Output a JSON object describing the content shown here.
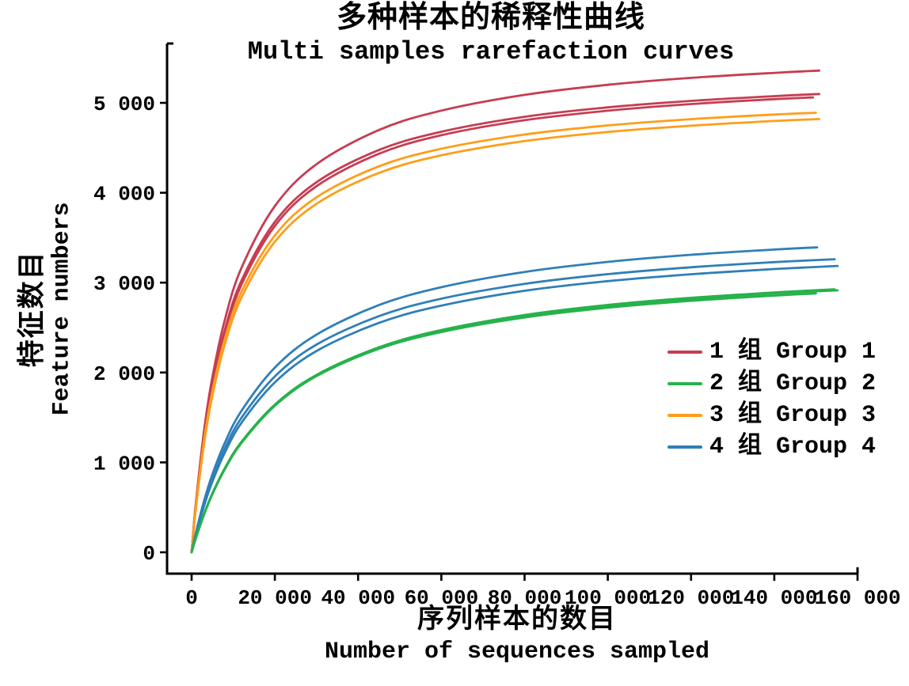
{
  "chart_data": {
    "type": "line",
    "title_zh": "多种样本的稀释性曲线",
    "title_en": "Multi samples rarefaction curves",
    "xlabel_zh": "序列样本的数目",
    "xlabel_en": "Number of sequences sampled",
    "ylabel_zh": "特征数目",
    "ylabel_en": "Feature numbers",
    "xlim": [
      0,
      160000
    ],
    "ylim": [
      0,
      5000
    ],
    "grid": false,
    "x_ticks": [
      {
        "value": 0,
        "label": "0"
      },
      {
        "value": 20000,
        "label": "20 000"
      },
      {
        "value": 40000,
        "label": "40 000"
      },
      {
        "value": 60000,
        "label": "60 000"
      },
      {
        "value": 80000,
        "label": "80 000"
      },
      {
        "value": 100000,
        "label": "100 000"
      },
      {
        "value": 120000,
        "label": "120 000"
      },
      {
        "value": 140000,
        "label": "140 000"
      },
      {
        "value": 160000,
        "label": "160 000"
      }
    ],
    "y_ticks": [
      {
        "value": 0,
        "label": "0"
      },
      {
        "value": 1000,
        "label": "1 000"
      },
      {
        "value": 2000,
        "label": "2 000"
      },
      {
        "value": 3000,
        "label": "3 000"
      },
      {
        "value": 4000,
        "label": "4 000"
      },
      {
        "value": 5000,
        "label": "5 000"
      }
    ],
    "legend": {
      "position": "right-middle",
      "entries": [
        {
          "label": "1 组 Group 1",
          "color": "#c63d52"
        },
        {
          "label": "2 组 Group 2",
          "color": "#27b24b"
        },
        {
          "label": "3 组 Group 3",
          "color": "#ff9d1a"
        },
        {
          "label": "4 组 Group 4",
          "color": "#2f7fb8"
        }
      ]
    },
    "series": [
      {
        "name": "Group 1 sample 1",
        "group": "Group 1",
        "color": "#c63d52",
        "points": [
          [
            0,
            0
          ],
          [
            500,
            282
          ],
          [
            1000,
            538
          ],
          [
            3000,
            1357
          ],
          [
            5000,
            1952
          ],
          [
            8000,
            2591
          ],
          [
            12000,
            3167
          ],
          [
            20000,
            3851
          ],
          [
            30000,
            4318
          ],
          [
            45000,
            4698
          ],
          [
            60000,
            4914
          ],
          [
            80000,
            5089
          ],
          [
            100000,
            5201
          ],
          [
            120000,
            5278
          ],
          [
            140000,
            5334
          ],
          [
            150800,
            5359
          ]
        ]
      },
      {
        "name": "Group 1 sample 2",
        "group": "Group 1",
        "color": "#c63d52",
        "points": [
          [
            0,
            0
          ],
          [
            500,
            271
          ],
          [
            1000,
            516
          ],
          [
            3000,
            1301
          ],
          [
            5000,
            1869
          ],
          [
            8000,
            2478
          ],
          [
            12000,
            3025
          ],
          [
            20000,
            3675
          ],
          [
            30000,
            4117
          ],
          [
            45000,
            4475
          ],
          [
            60000,
            4679
          ],
          [
            80000,
            4845
          ],
          [
            100000,
            4950
          ],
          [
            120000,
            5022
          ],
          [
            140000,
            5075
          ],
          [
            150800,
            5099
          ]
        ]
      },
      {
        "name": "Group 1 sample 3",
        "group": "Group 1",
        "color": "#c63d52",
        "points": [
          [
            0,
            0
          ],
          [
            500,
            264
          ],
          [
            1000,
            504
          ],
          [
            3000,
            1273
          ],
          [
            5000,
            1833
          ],
          [
            8000,
            2436
          ],
          [
            12000,
            2981
          ],
          [
            20000,
            3630
          ],
          [
            30000,
            4073
          ],
          [
            45000,
            4434
          ],
          [
            60000,
            4640
          ],
          [
            80000,
            4807
          ],
          [
            100000,
            4913
          ],
          [
            120000,
            4987
          ],
          [
            140000,
            5041
          ],
          [
            149300,
            5061
          ]
        ]
      },
      {
        "name": "Group 3 sample 1",
        "group": "Group 3",
        "color": "#ff9d1a",
        "points": [
          [
            0,
            0
          ],
          [
            500,
            260
          ],
          [
            1000,
            495
          ],
          [
            3000,
            1248
          ],
          [
            5000,
            1793
          ],
          [
            8000,
            2377
          ],
          [
            12000,
            2902
          ],
          [
            20000,
            3525
          ],
          [
            30000,
            3949
          ],
          [
            45000,
            4294
          ],
          [
            60000,
            4489
          ],
          [
            80000,
            4648
          ],
          [
            100000,
            4749
          ],
          [
            120000,
            4819
          ],
          [
            140000,
            4870
          ],
          [
            150000,
            4890
          ]
        ]
      },
      {
        "name": "Group 3 sample 2",
        "group": "Group 3",
        "color": "#ff9d1a",
        "points": [
          [
            0,
            0
          ],
          [
            500,
            252
          ],
          [
            1000,
            479
          ],
          [
            3000,
            1212
          ],
          [
            5000,
            1745
          ],
          [
            8000,
            2319
          ],
          [
            12000,
            2837
          ],
          [
            20000,
            3455
          ],
          [
            30000,
            3877
          ],
          [
            45000,
            4220
          ],
          [
            60000,
            4416
          ],
          [
            80000,
            4575
          ],
          [
            100000,
            4676
          ],
          [
            120000,
            4746
          ],
          [
            140000,
            4798
          ],
          [
            150800,
            4820
          ]
        ]
      },
      {
        "name": "Group 4 sample 1",
        "group": "Group 4",
        "color": "#2f7fb8",
        "points": [
          [
            0,
            0
          ],
          [
            500,
            110
          ],
          [
            1000,
            213
          ],
          [
            3000,
            574
          ],
          [
            5000,
            869
          ],
          [
            8000,
            1221
          ],
          [
            12000,
            1576
          ],
          [
            20000,
            2055
          ],
          [
            30000,
            2422
          ],
          [
            45000,
            2750
          ],
          [
            60000,
            2949
          ],
          [
            80000,
            3119
          ],
          [
            100000,
            3231
          ],
          [
            120000,
            3310
          ],
          [
            140000,
            3368
          ],
          [
            150300,
            3393
          ]
        ]
      },
      {
        "name": "Group 4 sample 2",
        "group": "Group 4",
        "color": "#2f7fb8",
        "points": [
          [
            0,
            0
          ],
          [
            500,
            103
          ],
          [
            1000,
            201
          ],
          [
            3000,
            543
          ],
          [
            5000,
            823
          ],
          [
            8000,
            1158
          ],
          [
            12000,
            1498
          ],
          [
            20000,
            1957
          ],
          [
            30000,
            2311
          ],
          [
            45000,
            2627
          ],
          [
            60000,
            2821
          ],
          [
            80000,
            2986
          ],
          [
            100000,
            3094
          ],
          [
            120000,
            3171
          ],
          [
            140000,
            3228
          ],
          [
            154500,
            3261
          ]
        ]
      },
      {
        "name": "Group 4 sample 3",
        "group": "Group 4",
        "color": "#2f7fb8",
        "points": [
          [
            0,
            0
          ],
          [
            500,
            98
          ],
          [
            1000,
            192
          ],
          [
            3000,
            519
          ],
          [
            5000,
            788
          ],
          [
            8000,
            1112
          ],
          [
            12000,
            1442
          ],
          [
            20000,
            1891
          ],
          [
            30000,
            2239
          ],
          [
            45000,
            2552
          ],
          [
            60000,
            2744
          ],
          [
            80000,
            2909
          ],
          [
            100000,
            3017
          ],
          [
            120000,
            3093
          ],
          [
            140000,
            3151
          ],
          [
            155200,
            3186
          ]
        ]
      },
      {
        "name": "Group 2 sample 1",
        "group": "Group 2",
        "color": "#27b24b",
        "points": [
          [
            0,
            0
          ],
          [
            500,
            80
          ],
          [
            1000,
            155
          ],
          [
            3000,
            426
          ],
          [
            5000,
            654
          ],
          [
            8000,
            936
          ],
          [
            12000,
            1230
          ],
          [
            20000,
            1643
          ],
          [
            30000,
            1974
          ],
          [
            45000,
            2281
          ],
          [
            60000,
            2473
          ],
          [
            80000,
            2640
          ],
          [
            100000,
            2752
          ],
          [
            120000,
            2831
          ],
          [
            140000,
            2891
          ],
          [
            154500,
            2926
          ]
        ]
      },
      {
        "name": "Group 2 sample 2",
        "group": "Group 2",
        "color": "#27b24b",
        "points": [
          [
            0,
            0
          ],
          [
            500,
            79
          ],
          [
            1000,
            153
          ],
          [
            3000,
            421
          ],
          [
            5000,
            647
          ],
          [
            8000,
            926
          ],
          [
            12000,
            1218
          ],
          [
            20000,
            1630
          ],
          [
            30000,
            1960
          ],
          [
            45000,
            2267
          ],
          [
            60000,
            2460
          ],
          [
            80000,
            2627
          ],
          [
            100000,
            2739
          ],
          [
            120000,
            2819
          ],
          [
            140000,
            2879
          ],
          [
            155200,
            2915
          ]
        ]
      },
      {
        "name": "Group 2 sample 3",
        "group": "Group 2",
        "color": "#27b24b",
        "points": [
          [
            0,
            0
          ],
          [
            500,
            80
          ],
          [
            1000,
            157
          ],
          [
            3000,
            429
          ],
          [
            5000,
            657
          ],
          [
            8000,
            938
          ],
          [
            12000,
            1230
          ],
          [
            20000,
            1638
          ],
          [
            30000,
            1964
          ],
          [
            45000,
            2264
          ],
          [
            60000,
            2451
          ],
          [
            80000,
            2613
          ],
          [
            100000,
            2721
          ],
          [
            120000,
            2798
          ],
          [
            140000,
            2856
          ],
          [
            150000,
            2880
          ]
        ]
      }
    ]
  }
}
